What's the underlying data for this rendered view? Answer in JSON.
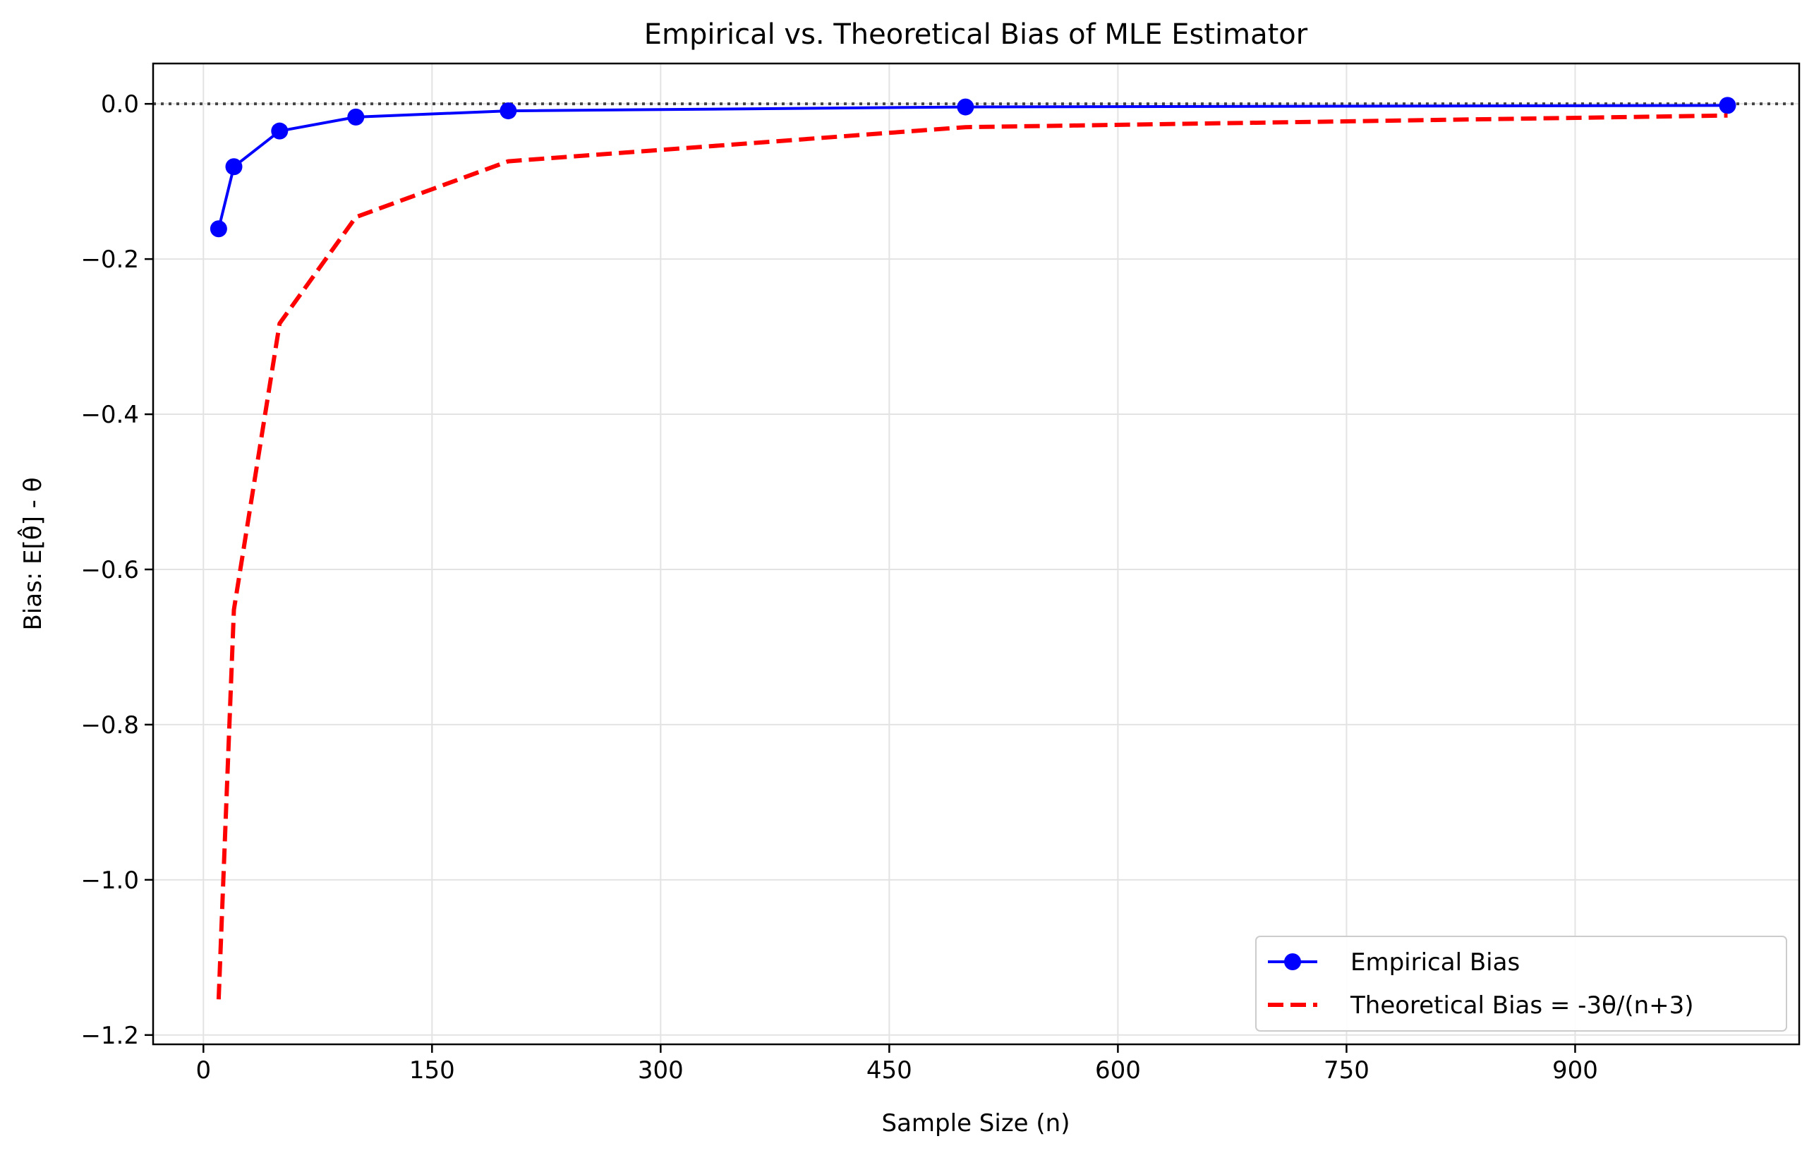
{
  "chart_data": {
    "type": "line",
    "title": "Empirical vs. Theoretical Bias of MLE Estimator",
    "xlabel": "Sample Size (n)",
    "ylabel": "Bias: E[θ̂] - θ",
    "xlim": [
      -33,
      1047
    ],
    "ylim": [
      -1.212,
      0.052
    ],
    "xticks": [
      0,
      150,
      300,
      450,
      600,
      750,
      900
    ],
    "xtick_labels": [
      "0",
      "150",
      "300",
      "450",
      "600",
      "750",
      "900"
    ],
    "yticks": [
      0.0,
      -0.2,
      -0.4,
      -0.6,
      -0.8,
      -1.0,
      -1.2
    ],
    "ytick_labels": [
      "0.0",
      "−0.2",
      "−0.4",
      "−0.6",
      "−0.8",
      "−1.0",
      "−1.2"
    ],
    "grid": true,
    "reference_line": {
      "y": 0.0,
      "style": "dotted",
      "color": "#444444"
    },
    "legend_position": "lower-right",
    "series": [
      {
        "name": "Empirical Bias",
        "color": "#0000ff",
        "style": "solid",
        "marker": "circle",
        "x": [
          10,
          20,
          50,
          100,
          200,
          500,
          1000
        ],
        "y": [
          -0.161,
          -0.081,
          -0.035,
          -0.017,
          -0.009,
          -0.004,
          -0.002
        ]
      },
      {
        "name": "Theoretical Bias = -3θ/(n+3)",
        "color": "#ff0000",
        "style": "dashed",
        "marker": "none",
        "x": [
          10,
          20,
          50,
          100,
          200,
          500,
          1000
        ],
        "y": [
          -1.154,
          -0.652,
          -0.283,
          -0.146,
          -0.074,
          -0.03,
          -0.015
        ]
      }
    ]
  }
}
